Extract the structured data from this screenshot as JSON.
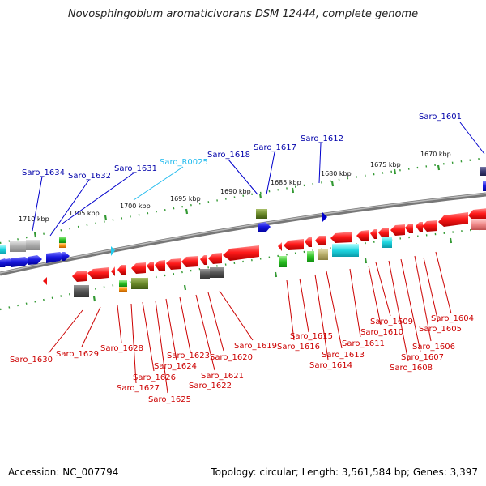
{
  "title": "Novosphingobium aromaticivorans DSM 12444, complete genome",
  "footer": {
    "accession": "Accession: NC_007794",
    "summary": "Topology: circular; Length: 3,561,584 bp; Genes: 3,397"
  },
  "colors": {
    "forward": "#0000cc",
    "reverse": "#ee1111",
    "rna": "#22ccee",
    "backbone": "#888888",
    "scale": "#339933",
    "label_forward": "#0000aa",
    "label_reverse": "#cc0000",
    "label_rna": "#22bbee"
  },
  "scale_labels": [
    "1710 kbp",
    "1705 kbp",
    "1700 kbp",
    "1695 kbp",
    "1690 kbp",
    "1685 kbp",
    "1680 kbp",
    "1675 kbp",
    "1670 kbp"
  ],
  "forward_labels": [
    "Saro_1601",
    "Saro_1612",
    "Saro_1617",
    "Saro_1618",
    "Saro_1631",
    "Saro_1632",
    "Saro_1634"
  ],
  "rna_labels": [
    "Saro_R0025"
  ],
  "reverse_labels": [
    "Saro_1604",
    "Saro_1605",
    "Saro_1606",
    "Saro_1607",
    "Saro_1608",
    "Saro_1609",
    "Saro_1610",
    "Saro_1611",
    "Saro_1613",
    "Saro_1614",
    "Saro_1615",
    "Saro_1616",
    "Saro_1619",
    "Saro_1620",
    "Saro_1621",
    "Saro_1622",
    "Saro_1623",
    "Saro_1624",
    "Saro_1625",
    "Saro_1626",
    "Saro_1627",
    "Saro_1628",
    "Saro_1629",
    "Saro_1630"
  ]
}
